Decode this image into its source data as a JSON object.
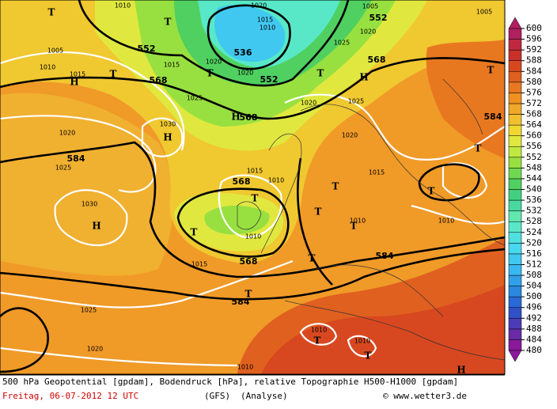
{
  "legend": {
    "levels": [
      480,
      484,
      488,
      492,
      496,
      500,
      504,
      508,
      512,
      516,
      520,
      524,
      528,
      532,
      536,
      540,
      544,
      548,
      552,
      556,
      560,
      564,
      568,
      572,
      576,
      580,
      584,
      588,
      592,
      596,
      600
    ],
    "colors": [
      "#8b1a9b",
      "#6a2aa8",
      "#4b3bb8",
      "#3050c8",
      "#2a6ad8",
      "#2a88e0",
      "#30a0e8",
      "#38b8f0",
      "#40c8f0",
      "#48d8f0",
      "#50e0e0",
      "#58e8c8",
      "#60e8b0",
      "#48d8a0",
      "#40d080",
      "#50d060",
      "#70d850",
      "#98e040",
      "#c0e840",
      "#e0e840",
      "#f0d830",
      "#f0c030",
      "#f0a828",
      "#f09020",
      "#e87820",
      "#e06020",
      "#d84820",
      "#c83028",
      "#c02840",
      "#b02060"
    ]
  },
  "map_labels": [
    "T",
    "1010",
    "T",
    "1020",
    "1015",
    "1010",
    "536",
    "552",
    "1020",
    "1025",
    "1020",
    "1005",
    "552",
    "1005",
    "1005",
    "552",
    "1010",
    "1015",
    "H",
    "T",
    "1015",
    "1020",
    "T",
    "568",
    "1025",
    "1020",
    "1025",
    "T",
    "H",
    "568",
    "T",
    "H",
    "568",
    "1030",
    "H",
    "1020",
    "1020",
    "584",
    "1025",
    "584",
    "T",
    "1015",
    "1010",
    "568",
    "1015",
    "T",
    "T",
    "1030",
    "H",
    "T",
    "1010",
    "568",
    "1015",
    "T",
    "1010",
    "T",
    "584",
    "1010",
    "1025",
    "584",
    "T",
    "1020",
    "1010",
    "1010",
    "T",
    "T",
    "1010",
    "H",
    "T",
    "T"
  ],
  "caption": {
    "line1": "500 hPa Geopotential [gpdam], Bodendruck [hPa], relative Topographie H500-H1000 [gpdam]",
    "date": "Freitag, 06-07-2012  12 UTC",
    "model": "(GFS)",
    "run": "(Analyse)",
    "credit": "© www.wetter3.de"
  }
}
